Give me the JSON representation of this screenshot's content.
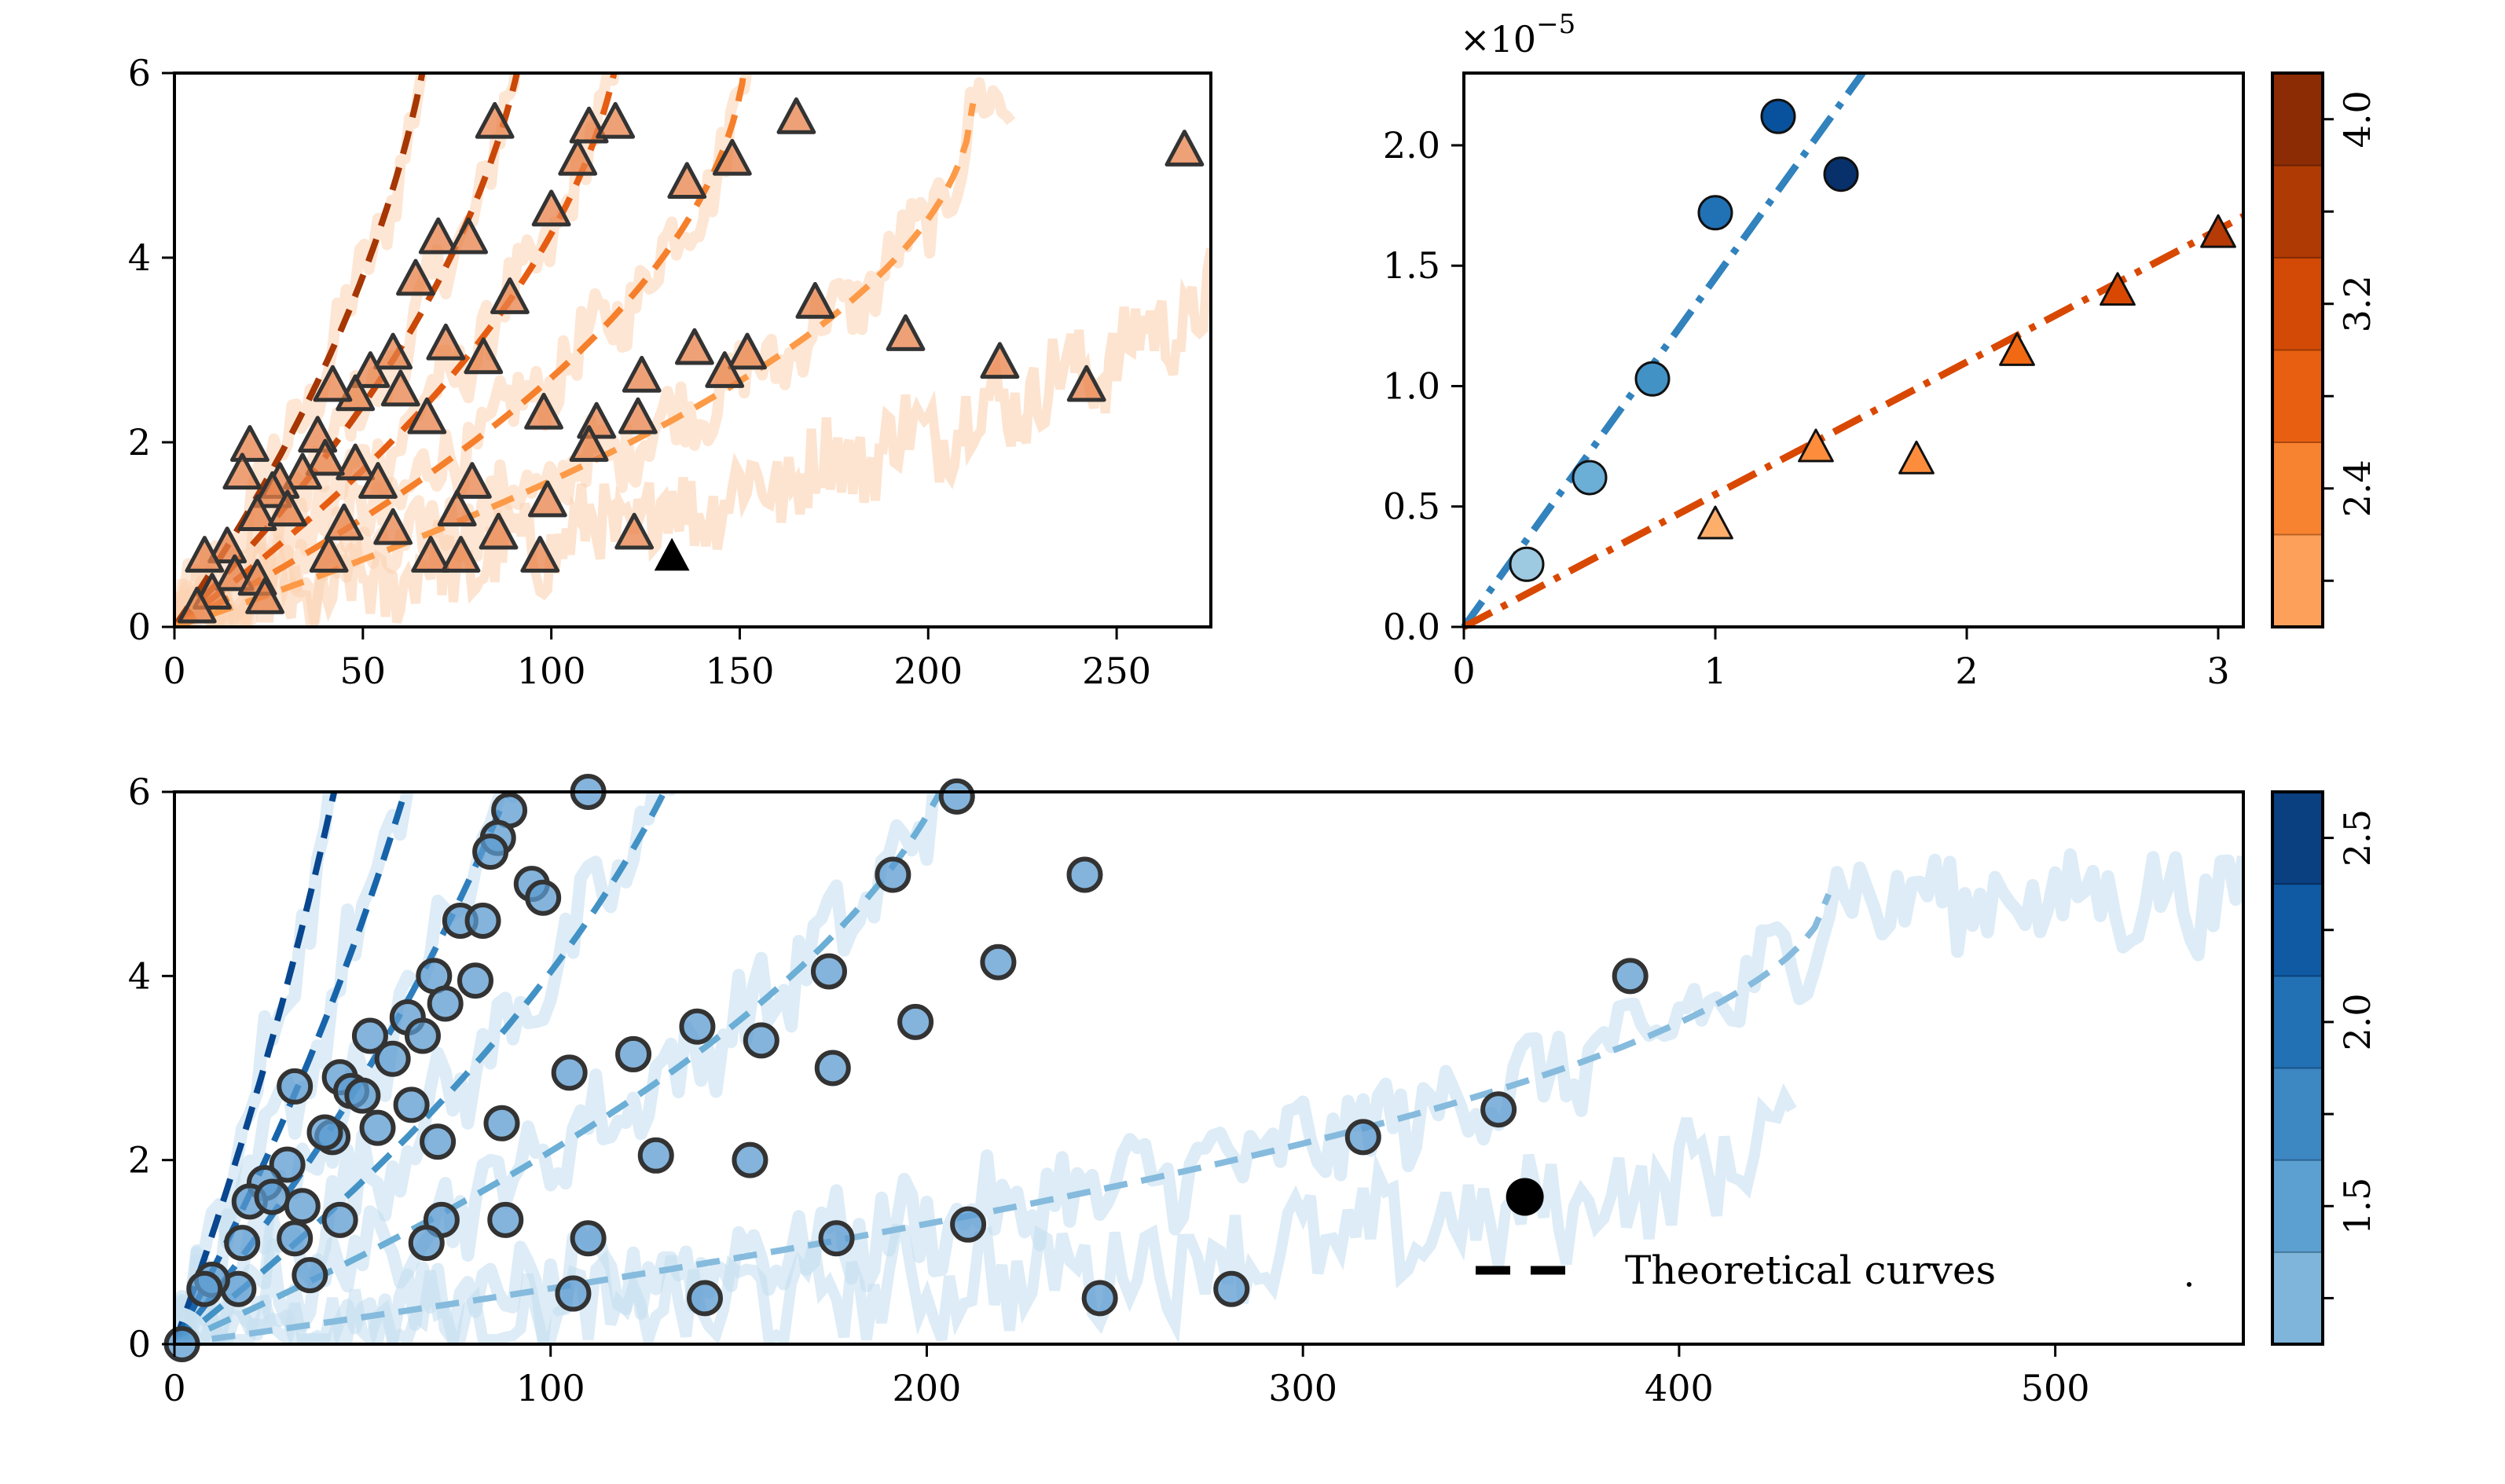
{
  "chart_data": [
    {
      "id": "top_left",
      "type": "scatter",
      "xlim": [
        0,
        275
      ],
      "ylim": [
        0,
        6
      ],
      "xticks": [
        "0",
        "50",
        "100",
        "150",
        "200",
        "250"
      ],
      "yticks": [
        "0",
        "2",
        "4",
        "6"
      ],
      "xtick_values": [
        0,
        50,
        100,
        150,
        200,
        250
      ],
      "ytick_values": [
        0,
        2,
        4,
        6
      ],
      "curves": [
        {
          "a": 8.5,
          "xmax": 72,
          "colorIdx": 5
        },
        {
          "a": 7.8,
          "xmax": 96,
          "colorIdx": 4
        },
        {
          "a": 7.2,
          "xmax": 120,
          "colorIdx": 3
        },
        {
          "a": 6.5,
          "xmax": 152,
          "colorIdx": 2
        },
        {
          "a": 5.8,
          "xmax": 212,
          "colorIdx": 1
        }
      ],
      "points": [
        [
          85,
          5.45
        ],
        [
          110,
          5.4
        ],
        [
          117,
          5.45
        ],
        [
          165,
          5.5
        ],
        [
          268,
          5.15
        ],
        [
          107,
          5.05
        ],
        [
          148,
          5.05
        ],
        [
          100,
          4.5
        ],
        [
          136,
          4.8
        ],
        [
          70,
          4.2
        ],
        [
          78,
          4.2
        ],
        [
          64,
          3.75
        ],
        [
          89,
          3.55
        ],
        [
          170,
          3.5
        ],
        [
          138,
          3.0
        ],
        [
          152,
          2.95
        ],
        [
          194,
          3.15
        ],
        [
          219,
          2.85
        ],
        [
          242,
          2.6
        ],
        [
          146,
          2.75
        ],
        [
          72,
          3.05
        ],
        [
          82,
          2.9
        ],
        [
          58,
          2.95
        ],
        [
          52,
          2.75
        ],
        [
          48,
          2.5
        ],
        [
          42,
          2.6
        ],
        [
          60,
          2.55
        ],
        [
          67,
          2.25
        ],
        [
          98,
          2.3
        ],
        [
          112,
          2.2
        ],
        [
          124,
          2.7
        ],
        [
          123,
          2.25
        ],
        [
          110,
          1.95
        ],
        [
          38,
          2.05
        ],
        [
          48,
          1.75
        ],
        [
          54,
          1.55
        ],
        [
          40,
          1.8
        ],
        [
          34,
          1.65
        ],
        [
          28,
          1.55
        ],
        [
          20,
          1.95
        ],
        [
          18,
          1.65
        ],
        [
          26,
          1.45
        ],
        [
          22,
          1.2
        ],
        [
          30,
          1.25
        ],
        [
          45,
          1.1
        ],
        [
          79,
          1.55
        ],
        [
          99,
          1.35
        ],
        [
          75,
          1.25
        ],
        [
          58,
          1.05
        ],
        [
          68,
          0.75
        ],
        [
          76,
          0.75
        ],
        [
          86,
          1.0
        ],
        [
          97,
          0.75
        ],
        [
          41,
          0.75
        ],
        [
          14,
          0.85
        ],
        [
          8,
          0.75
        ],
        [
          16,
          0.55
        ],
        [
          22,
          0.5
        ],
        [
          24,
          0.3
        ],
        [
          10,
          0.35
        ],
        [
          6,
          0.2
        ],
        [
          122,
          1.0
        ]
      ],
      "highlight": [
        132,
        0.75
      ]
    },
    {
      "id": "top_right",
      "type": "scatter",
      "xlim": [
        0,
        3.1
      ],
      "ylim": [
        0,
        2.3
      ],
      "xticks": [
        "0",
        "1",
        "2",
        "3"
      ],
      "yticks": [
        "0.0",
        "0.5",
        "1.0",
        "1.5",
        "2.0"
      ],
      "xtick_values": [
        0,
        1,
        2,
        3
      ],
      "ytick_values": [
        0,
        0.5,
        1.0,
        1.5,
        2.0
      ],
      "exponent_label": "×10−5",
      "series": [
        {
          "name": "blue",
          "marker": "circle",
          "fit_slope": 1.45,
          "fit_color": "#3182bd",
          "points": [
            [
              0.25,
              0.26,
              0
            ],
            [
              0.5,
              0.62,
              1
            ],
            [
              0.75,
              1.03,
              2
            ],
            [
              1.0,
              1.72,
              3
            ],
            [
              1.25,
              2.12,
              4
            ],
            [
              1.5,
              1.88,
              5
            ]
          ]
        },
        {
          "name": "orange",
          "marker": "triangle",
          "fit_slope": 0.55,
          "fit_color": "#d94801",
          "points": [
            [
              1.0,
              0.42,
              0
            ],
            [
              1.4,
              0.74,
              1
            ],
            [
              1.8,
              0.69,
              1
            ],
            [
              2.2,
              1.14,
              2
            ],
            [
              2.6,
              1.39,
              3
            ],
            [
              3.0,
              1.63,
              4
            ]
          ]
        }
      ]
    },
    {
      "id": "bottom",
      "type": "scatter",
      "xlim": [
        0,
        550
      ],
      "ylim": [
        0,
        6
      ],
      "xticks": [
        "0",
        "100",
        "200",
        "300",
        "400",
        "500"
      ],
      "yticks": [
        "0",
        "2",
        "4",
        "6"
      ],
      "xtick_values": [
        0,
        100,
        200,
        300,
        400,
        500
      ],
      "ytick_values": [
        0,
        2,
        4,
        6
      ],
      "curves": [
        {
          "a": 15.5,
          "xmax": 68,
          "colorIdx": 5
        },
        {
          "a": 13.8,
          "xmax": 90,
          "colorIdx": 4
        },
        {
          "a": 12.0,
          "xmax": 118,
          "colorIdx": 3
        },
        {
          "a": 10.0,
          "xmax": 155,
          "colorIdx": 2
        },
        {
          "a": 7.8,
          "xmax": 215,
          "colorIdx": 1
        },
        {
          "a": 5.0,
          "xmax": 440,
          "colorIdx": 0
        }
      ],
      "points": [
        [
          89,
          5.8
        ],
        [
          110,
          6.0
        ],
        [
          208,
          5.95
        ],
        [
          86,
          5.5
        ],
        [
          84,
          5.35
        ],
        [
          191,
          5.1
        ],
        [
          242,
          5.1
        ],
        [
          95,
          5.0
        ],
        [
          98,
          4.85
        ],
        [
          76,
          4.6
        ],
        [
          82,
          4.6
        ],
        [
          69,
          4.0
        ],
        [
          80,
          3.95
        ],
        [
          174,
          4.05
        ],
        [
          219,
          4.15
        ],
        [
          387,
          4.0
        ],
        [
          62,
          3.55
        ],
        [
          72,
          3.7
        ],
        [
          52,
          3.35
        ],
        [
          58,
          3.1
        ],
        [
          66,
          3.35
        ],
        [
          139,
          3.45
        ],
        [
          156,
          3.3
        ],
        [
          197,
          3.5
        ],
        [
          105,
          2.95
        ],
        [
          122,
          3.15
        ],
        [
          175,
          3.0
        ],
        [
          32,
          2.8
        ],
        [
          44,
          2.9
        ],
        [
          47,
          2.75
        ],
        [
          50,
          2.7
        ],
        [
          54,
          2.35
        ],
        [
          42,
          2.25
        ],
        [
          40,
          2.3
        ],
        [
          63,
          2.6
        ],
        [
          70,
          2.2
        ],
        [
          87,
          2.4
        ],
        [
          128,
          2.05
        ],
        [
          153,
          2.0
        ],
        [
          316,
          2.25
        ],
        [
          352,
          2.55
        ],
        [
          30,
          1.95
        ],
        [
          24,
          1.75
        ],
        [
          20,
          1.55
        ],
        [
          26,
          1.6
        ],
        [
          34,
          1.5
        ],
        [
          18,
          1.1
        ],
        [
          32,
          1.15
        ],
        [
          44,
          1.35
        ],
        [
          71,
          1.35
        ],
        [
          88,
          1.35
        ],
        [
          110,
          1.15
        ],
        [
          176,
          1.15
        ],
        [
          211,
          1.3
        ],
        [
          67,
          1.1
        ],
        [
          36,
          0.75
        ],
        [
          17,
          0.6
        ],
        [
          10,
          0.7
        ],
        [
          8,
          0.6
        ],
        [
          106,
          0.55
        ],
        [
          141,
          0.5
        ],
        [
          246,
          0.5
        ],
        [
          281,
          0.6
        ],
        [
          2,
          0.0
        ]
      ],
      "highlight": [
        359,
        1.6
      ],
      "legend": {
        "label": "Theoretical curves",
        "placement": "lower-right"
      }
    }
  ],
  "colorbars": [
    {
      "id": "orange",
      "ticks": [
        "4.0",
        "3.2",
        "2.4"
      ],
      "colors": [
        "#fda05a",
        "#f7822f",
        "#e85f12",
        "#d24a06",
        "#b03a04",
        "#8b2c04"
      ]
    },
    {
      "id": "blue",
      "ticks": [
        "2.5",
        "2.0",
        "1.5"
      ],
      "colors": [
        "#7fb5da",
        "#5ca0d1",
        "#3d87c3",
        "#2271b5",
        "#0f5aa3",
        "#0a3f80"
      ]
    }
  ],
  "colors": {
    "orange_palette": [
      "#fdb07a",
      "#fd9a48",
      "#f67f2b",
      "#e65d12",
      "#c94707",
      "#a63603"
    ],
    "blue_palette": [
      "#86bbdd",
      "#6baed6",
      "#4292c6",
      "#2f7fbf",
      "#1764ab",
      "#08468f"
    ],
    "orange_noise": "#fcd2b0",
    "blue_noise": "#c7dff0"
  }
}
